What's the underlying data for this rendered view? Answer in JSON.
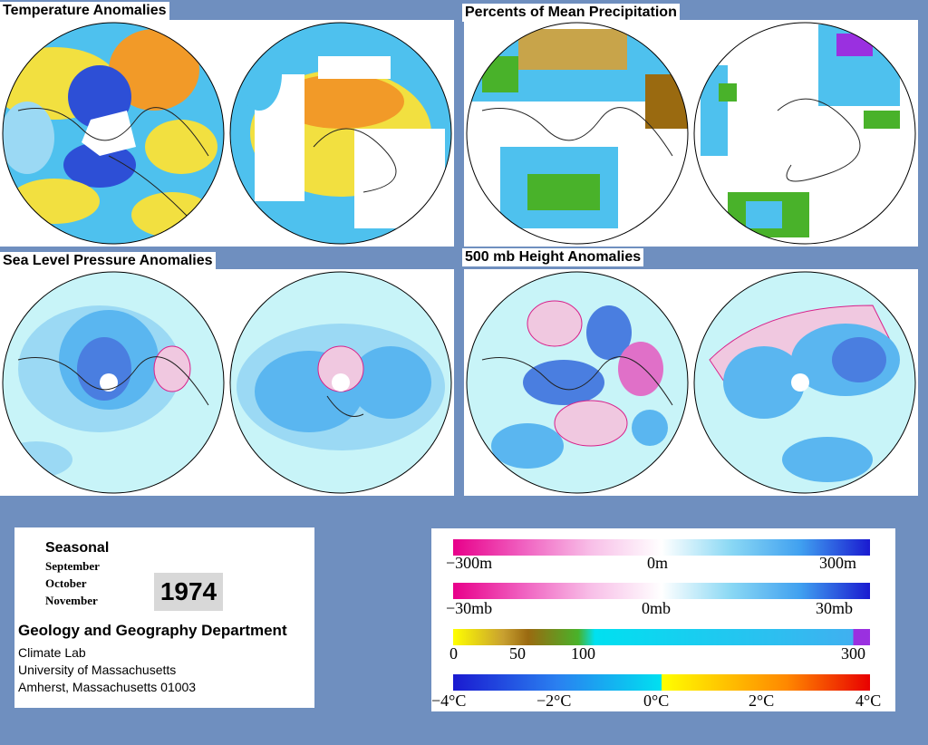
{
  "panels": {
    "temperature": {
      "title": "Temperature Anomalies"
    },
    "precipitation": {
      "title": "Percents of Mean Precipitation"
    },
    "slp": {
      "title": "Sea Level Pressure Anomalies"
    },
    "height500": {
      "title": "500 mb Height Anomalies"
    }
  },
  "info": {
    "season": "Seasonal",
    "months": [
      "September",
      "October",
      "November"
    ],
    "year": "1974",
    "department": "Geology and Geography Department",
    "lines": [
      "Climate Lab",
      "University of Massachusetts",
      "Amherst, Massachusetts 01003"
    ]
  },
  "legends": {
    "height": {
      "labels": [
        "−300m",
        "0m",
        "300m"
      ],
      "colors": [
        "#e8008a",
        "#ffffff",
        "#1a1ad0"
      ]
    },
    "pressure": {
      "labels": [
        "−30mb",
        "0mb",
        "30mb"
      ],
      "colors": [
        "#e8008a",
        "#ffffff",
        "#1a1ad0"
      ]
    },
    "precip": {
      "labels": [
        "0",
        "50",
        "100",
        "300"
      ],
      "colors": [
        "#ffff00",
        "#9a6a10",
        "#49b22a",
        "#00e0f0",
        "#9a30e0"
      ]
    },
    "temperature": {
      "labels": [
        "−4°C",
        "−2°C",
        "0°C",
        "2°C",
        "4°C"
      ],
      "colors": [
        "#1a1ad0",
        "#00e0f0",
        "#ffff00",
        "#ff8800",
        "#e80000"
      ]
    }
  },
  "colors": {
    "background": "#6f8fbf",
    "ocean_light": "#c8f4f8",
    "anomaly_blue": "#5ab6f0",
    "anomaly_dark": "#2d4fd6",
    "anomaly_orange": "#f29a28",
    "anomaly_yellow": "#f4e040",
    "pink_contour": "#d8208a"
  }
}
